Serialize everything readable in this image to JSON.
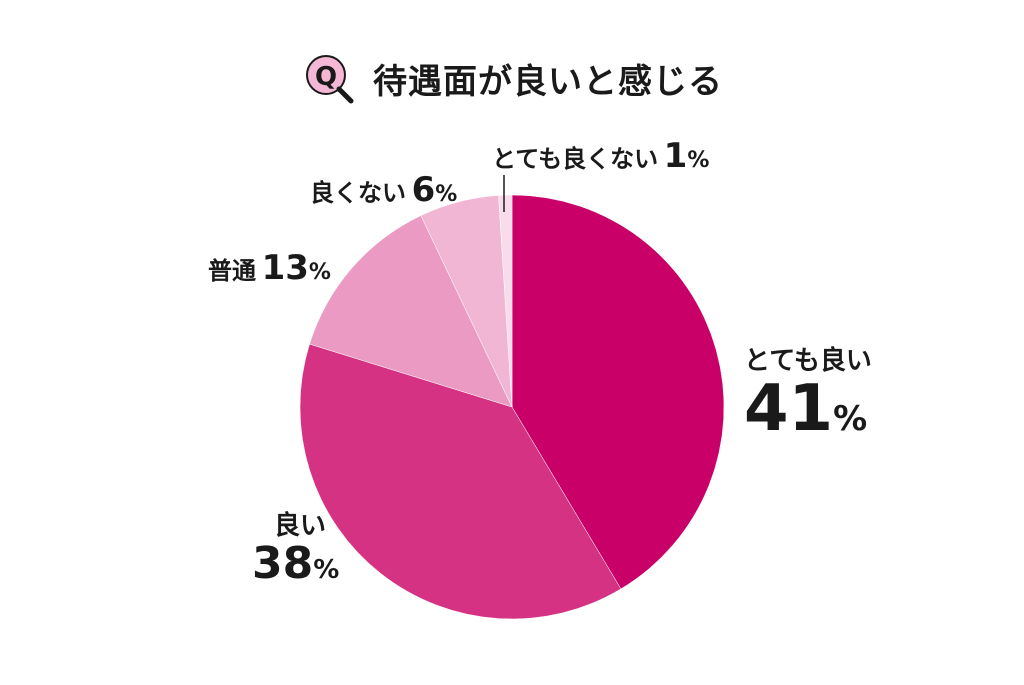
{
  "title": {
    "badge": "Q",
    "text": "待遇面が良いと感じる"
  },
  "chart_data": {
    "type": "pie",
    "title": "待遇面が良いと感じる",
    "slices": [
      {
        "label": "とても良い",
        "value": 41,
        "color": "#c90067"
      },
      {
        "label": "良い",
        "value": 38,
        "color": "#d63283"
      },
      {
        "label": "普通",
        "value": 13,
        "color": "#eb9ac4"
      },
      {
        "label": "良くない",
        "value": 6,
        "color": "#f2b6d5"
      },
      {
        "label": "とても良くない",
        "value": 1,
        "color": "#f8dcea"
      }
    ],
    "unit": "%"
  },
  "colors": {
    "badge_fill": "#f4b8d6",
    "badge_stroke": "#c90067",
    "text": "#1a1a1a"
  }
}
